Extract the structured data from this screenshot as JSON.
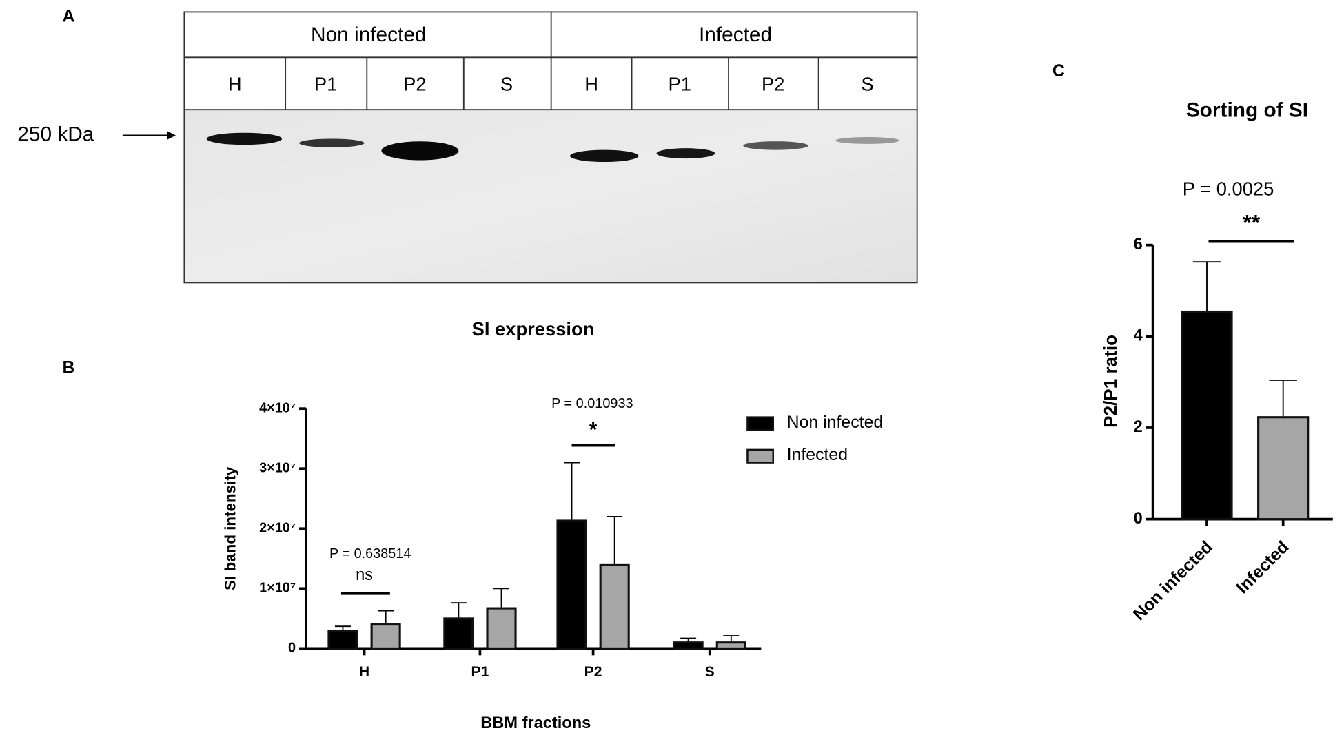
{
  "panel_labels": [
    "A",
    "B",
    "C"
  ],
  "blot": {
    "header": [
      "Non infected",
      "Infected"
    ],
    "lanes": [
      "H",
      "P1",
      "P2",
      "S",
      "H",
      "P1",
      "P2",
      "S"
    ],
    "marker": "250 kDa"
  },
  "chart_data": [
    {
      "type": "bar",
      "title": "SI expression",
      "x_label": "BBM fractions",
      "y_label": "SI band intensity",
      "categories": [
        "H",
        "P1",
        "P2",
        "S"
      ],
      "series": [
        {
          "name": "Non infected",
          "color": "#000000",
          "values": [
            2900000,
            5000000,
            21300000,
            1000000
          ],
          "errors": [
            800000,
            2600000,
            9700000,
            700000
          ]
        },
        {
          "name": "Infected",
          "color": "#a6a6a6",
          "values": [
            4000000,
            6700000,
            13900000,
            1000000
          ],
          "errors": [
            2300000,
            3300000,
            8100000,
            1100000
          ]
        }
      ],
      "ylim": [
        0,
        40000000
      ],
      "yticks": [
        0,
        {
          "value": 10000000,
          "label": "1×10⁷"
        },
        {
          "value": 20000000,
          "label": "2×10⁷"
        },
        {
          "value": 30000000,
          "label": "3×10⁷"
        },
        {
          "value": 40000000,
          "label": "4×10⁷"
        }
      ],
      "annotations": [
        "P = 0.638514",
        "ns",
        "P = 0.010933",
        "*"
      ],
      "legend": "top-right"
    },
    {
      "type": "bar",
      "title": "Sorting of SI",
      "y_label": "P2/P1 ratio",
      "categories": [
        "Non infected",
        "Infected"
      ],
      "values": [
        4.54,
        2.23
      ],
      "errors": [
        1.09,
        0.81
      ],
      "colors": [
        "#000000",
        "#a6a6a6"
      ],
      "ylim": [
        0,
        6
      ],
      "yticks": [
        0,
        2,
        4,
        6
      ],
      "annotations": [
        "P = 0.0025",
        "**"
      ]
    }
  ]
}
